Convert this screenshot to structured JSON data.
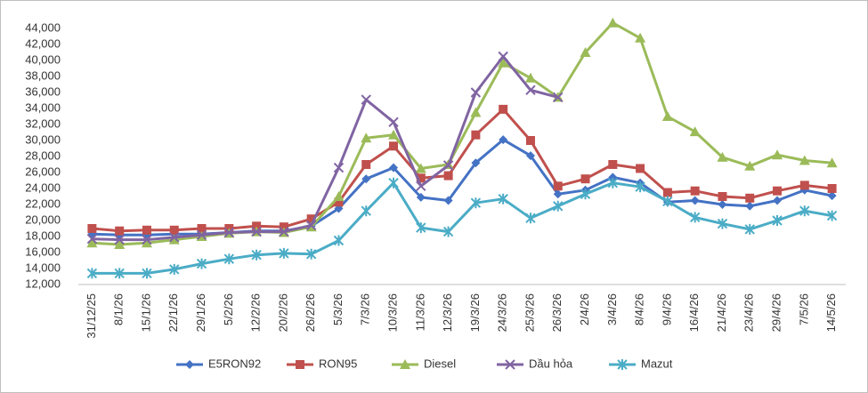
{
  "chart_data": {
    "type": "line",
    "categories": [
      "31/12/25",
      "8/1/26",
      "15/1/26",
      "22/1/26",
      "29/1/26",
      "5/2/26",
      "12/2/26",
      "20/2/26",
      "26/2/26",
      "5/3/26",
      "7/3/26",
      "10/3/26",
      "11/3/26",
      "12/3/26",
      "19/3/26",
      "24/3/26",
      "25/3/26",
      "26/3/26",
      "2/4/26",
      "3/4/26",
      "8/4/26",
      "9/4/26",
      "16/4/26",
      "21/4/26",
      "23/4/26",
      "29/4/26",
      "7/5/26",
      "14/5/26"
    ],
    "series": [
      {
        "name": "E5RON92",
        "color": "#4472c4",
        "marker": "diamond",
        "values": [
          18300,
          18200,
          18200,
          18300,
          18300,
          18500,
          18700,
          18700,
          19300,
          21500,
          25200,
          26600,
          22900,
          22500,
          27200,
          30100,
          28100,
          23300,
          23800,
          25400,
          24700,
          22300,
          22500,
          22000,
          21800,
          22500,
          23800,
          23100
        ]
      },
      {
        "name": "RON95",
        "color": "#c0504d",
        "marker": "square",
        "values": [
          19000,
          18700,
          18800,
          18800,
          19000,
          19000,
          19300,
          19200,
          20200,
          22300,
          27000,
          29300,
          25300,
          25600,
          30700,
          33900,
          30000,
          24300,
          25200,
          27000,
          26500,
          23500,
          23700,
          23000,
          22800,
          23700,
          24400,
          24000
        ]
      },
      {
        "name": "Diesel",
        "color": "#9bbb59",
        "marker": "triangle",
        "values": [
          17200,
          17000,
          17200,
          17600,
          18000,
          18400,
          18600,
          18500,
          19200,
          23000,
          30300,
          30700,
          26500,
          27000,
          33500,
          39700,
          37800,
          35400,
          41000,
          44700,
          42800,
          33000,
          31100,
          27900,
          26800,
          28200,
          27500,
          27200
        ]
      },
      {
        "name": "Dầu hỏa",
        "color": "#8064a2",
        "marker": "x",
        "values": [
          17700,
          17600,
          17600,
          17900,
          18200,
          18500,
          18600,
          18600,
          19400,
          26600,
          35100,
          32300,
          24300,
          26900,
          36000,
          40500,
          36300,
          35400,
          null,
          null,
          null,
          null,
          null,
          null,
          null,
          null,
          null,
          null
        ]
      },
      {
        "name": "Mazut",
        "color": "#4bacc6",
        "marker": "star",
        "values": [
          13400,
          13400,
          13400,
          13900,
          14600,
          15200,
          15700,
          15900,
          15800,
          17500,
          21200,
          24700,
          19100,
          18600,
          22200,
          22700,
          20300,
          21800,
          23300,
          24700,
          24200,
          22400,
          20400,
          19600,
          18900,
          20000,
          21200,
          20600
        ]
      }
    ],
    "ylim": [
      12000,
      44000
    ],
    "yticks": [
      {
        "value": 12000,
        "label": "12,000"
      },
      {
        "value": 14000,
        "label": "14,000"
      },
      {
        "value": 16000,
        "label": "16,000"
      },
      {
        "value": 18000,
        "label": "18,000"
      },
      {
        "value": 20000,
        "label": "20,000"
      },
      {
        "value": 22000,
        "label": "22,000"
      },
      {
        "value": 24000,
        "label": "24,000"
      },
      {
        "value": 26000,
        "label": "26,000"
      },
      {
        "value": 28000,
        "label": "28,000"
      },
      {
        "value": 30000,
        "label": "30,000"
      },
      {
        "value": 32000,
        "label": "32,000"
      },
      {
        "value": 34000,
        "label": "34,000"
      },
      {
        "value": 36000,
        "label": "36,000"
      },
      {
        "value": 38000,
        "label": "38,000"
      },
      {
        "value": 40000,
        "label": "40,000"
      },
      {
        "value": 42000,
        "label": "42,000"
      },
      {
        "value": 44000,
        "label": "44,000"
      }
    ],
    "grid": false,
    "legend": "bottom"
  }
}
